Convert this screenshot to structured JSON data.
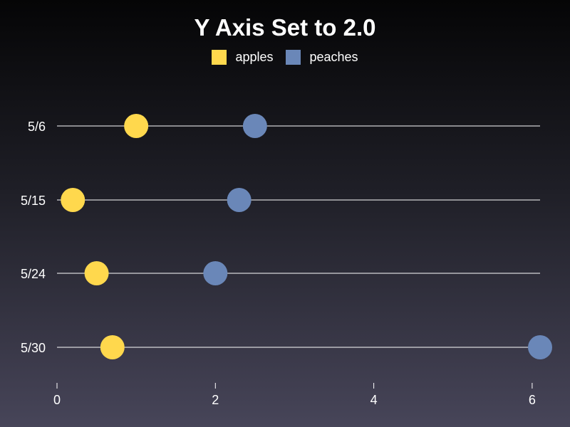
{
  "chart_data": {
    "type": "scatter",
    "title": "Y Axis Set to 2.0",
    "categories": [
      "5/6",
      "5/15",
      "5/24",
      "5/30"
    ],
    "series": [
      {
        "name": "apples",
        "color": "#ffd84d",
        "values": [
          1.0,
          0.2,
          0.5,
          0.7
        ]
      },
      {
        "name": "peaches",
        "color": "#6a87b8",
        "values": [
          2.5,
          2.3,
          2.0,
          6.1
        ]
      }
    ],
    "x_ticks": [
      0,
      2,
      4,
      6
    ],
    "x_tick_labels": [
      "0",
      "2",
      "4",
      "6"
    ],
    "xlim": [
      0,
      6.1
    ],
    "xlabel": "",
    "ylabel": "",
    "legend": "top-center",
    "grid": "horizontal lines per category"
  }
}
